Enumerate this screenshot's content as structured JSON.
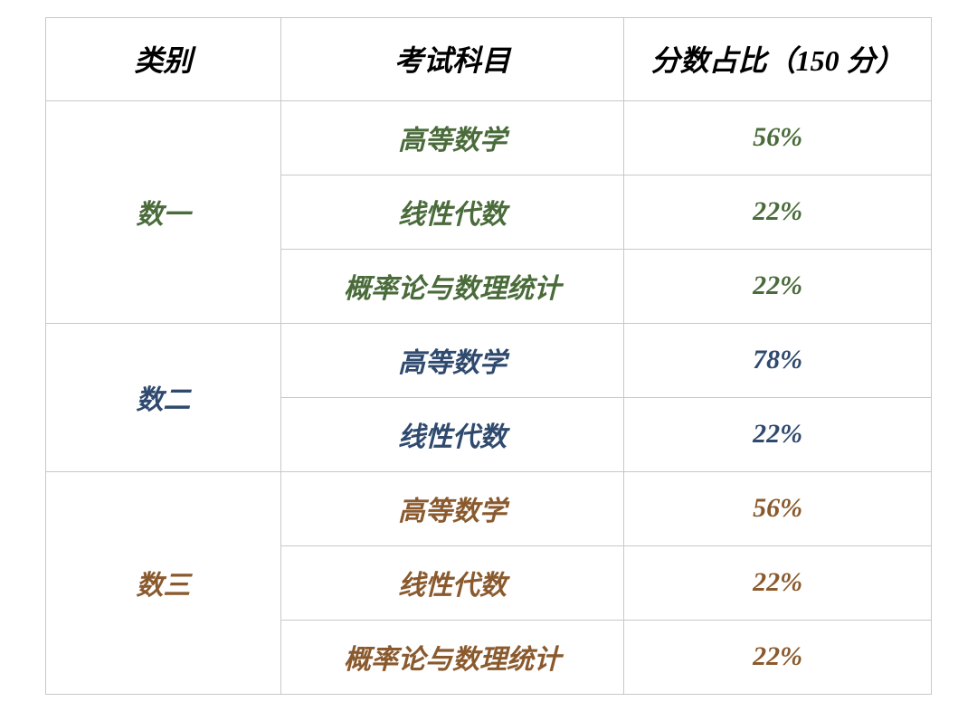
{
  "table": {
    "header": {
      "category": "类别",
      "subject": "考试科目",
      "ratio": "分数占比（150 分）"
    },
    "groups": [
      {
        "category": "数一",
        "color": "#4a6b3a",
        "rows": [
          {
            "subject": "高等数学",
            "ratio": "56%"
          },
          {
            "subject": "线性代数",
            "ratio": "22%"
          },
          {
            "subject": "概率论与数理统计",
            "ratio": "22%"
          }
        ]
      },
      {
        "category": "数二",
        "color": "#2f4a6e",
        "rows": [
          {
            "subject": "高等数学",
            "ratio": "78%"
          },
          {
            "subject": "线性代数",
            "ratio": "22%"
          }
        ]
      },
      {
        "category": "数三",
        "color": "#8a5a2e",
        "rows": [
          {
            "subject": "高等数学",
            "ratio": "56%"
          },
          {
            "subject": "线性代数",
            "ratio": "22%"
          },
          {
            "subject": "概率论与数理统计",
            "ratio": "22%"
          }
        ]
      }
    ],
    "styles": {
      "border_color": "#c8c8c8",
      "background_color": "#ffffff",
      "header_text_color": "#000000",
      "header_fontsize": 32,
      "cell_fontsize": 30,
      "header_row_height": 92,
      "body_row_height": 82,
      "col_widths": {
        "category": 260,
        "subject": 380,
        "ratio": 340
      },
      "font_family": "KaiTi / STKaiti (Chinese regular script, italic, bold)"
    }
  }
}
